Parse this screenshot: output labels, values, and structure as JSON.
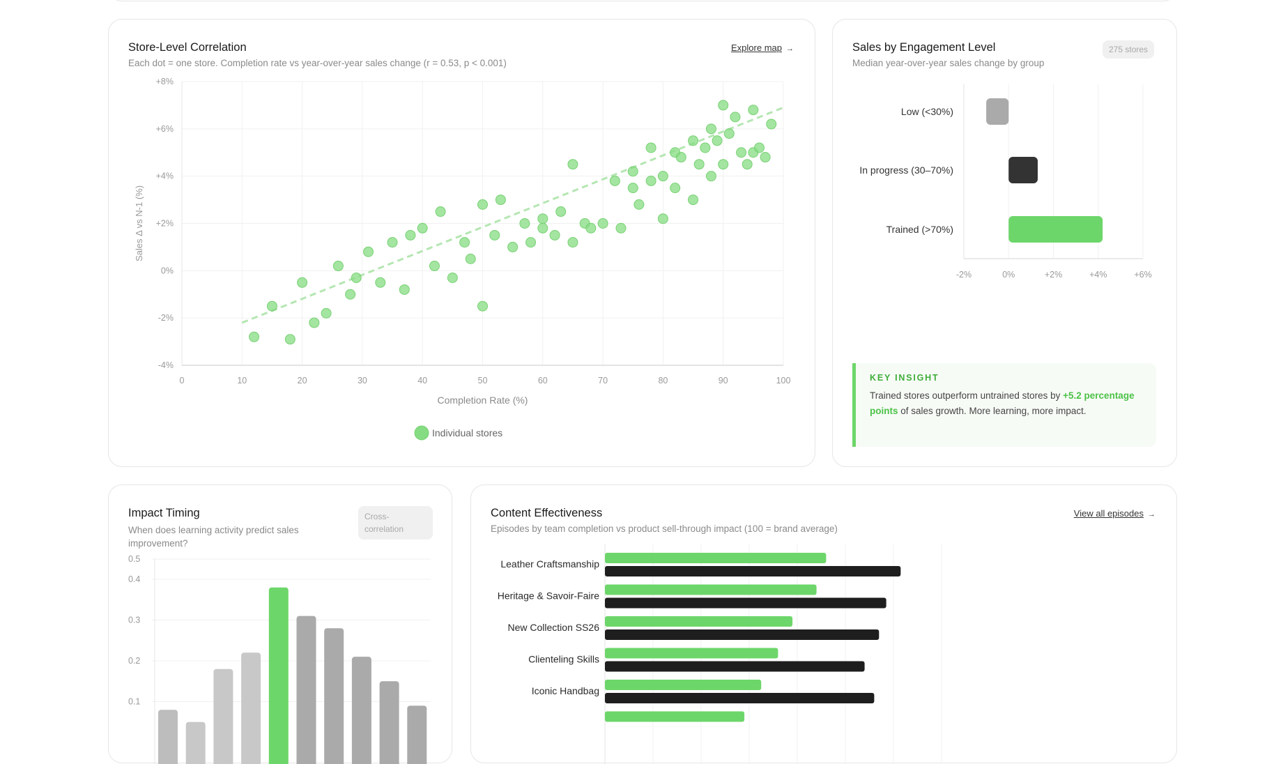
{
  "colors": {
    "green": "#6dd66a",
    "scatter": "#86dc82",
    "dark": "#1e1e1e",
    "gray_light": "#c8c8c8",
    "gray_dark": "#aaaaaa",
    "gray_low": "#aaaaaa",
    "gray_mid": "#333333"
  },
  "correlation": {
    "title": "Store-Level Correlation",
    "subtitle": "Each dot = one store. Completion rate vs year-over-year sales change (r = 0.53, p < 0.001)",
    "link_label": "Explore map",
    "link_icon": "arrow-right-icon"
  },
  "engagement": {
    "title": "Sales by Engagement Level",
    "subtitle": "Median year-over-year sales change by group",
    "badge": "275 stores",
    "insight": {
      "heading": "KEY INSIGHT",
      "text_before": "Trained stores outperform untrained stores by ",
      "highlight": "+5.2 percentage points",
      "text_after": " of sales growth. More learning, more impact."
    }
  },
  "timing": {
    "title": "Impact Timing",
    "subtitle": "When does learning activity predict sales improvement?",
    "badge": "Cross-correlation"
  },
  "content": {
    "title": "Content Effectiveness",
    "subtitle": "Episodes by team completion vs product sell-through impact (100 = brand average)",
    "link_label": "View all episodes",
    "link_icon": "arrow-right-icon"
  },
  "chart_data": [
    {
      "type": "scatter",
      "xlabel": "Completion Rate (%)",
      "ylabel": "Sales Δ vs N-1 (%)",
      "xlim": [
        0,
        100
      ],
      "ylim": [
        -4,
        8
      ],
      "xticks": [
        "0",
        "10",
        "20",
        "30",
        "40",
        "50",
        "60",
        "70",
        "80",
        "90",
        "100"
      ],
      "yticks": [
        "+8%",
        "+6%",
        "+4%",
        "+2%",
        "0%",
        "-2%",
        "-4%"
      ],
      "grid": true,
      "legend": {
        "placement": "bottom",
        "entries": [
          "Individual stores"
        ]
      },
      "trendline": {
        "style": "dashed",
        "from": [
          10,
          -2.2
        ],
        "to": [
          100,
          6.9
        ]
      },
      "points": [
        [
          12,
          -2.8
        ],
        [
          15,
          -1.5
        ],
        [
          18,
          -2.9
        ],
        [
          20,
          -0.5
        ],
        [
          22,
          -2.2
        ],
        [
          24,
          -1.8
        ],
        [
          26,
          0.2
        ],
        [
          28,
          -1.0
        ],
        [
          29,
          -0.3
        ],
        [
          31,
          0.8
        ],
        [
          33,
          -0.5
        ],
        [
          35,
          1.2
        ],
        [
          37,
          -0.8
        ],
        [
          38,
          1.5
        ],
        [
          40,
          1.8
        ],
        [
          42,
          0.2
        ],
        [
          43,
          2.5
        ],
        [
          45,
          -0.3
        ],
        [
          47,
          1.2
        ],
        [
          48,
          0.5
        ],
        [
          50,
          2.8
        ],
        [
          50,
          -1.5
        ],
        [
          52,
          1.5
        ],
        [
          53,
          3.0
        ],
        [
          55,
          1.0
        ],
        [
          57,
          2.0
        ],
        [
          58,
          1.2
        ],
        [
          60,
          2.2
        ],
        [
          60,
          1.8
        ],
        [
          62,
          1.5
        ],
        [
          63,
          2.5
        ],
        [
          65,
          1.2
        ],
        [
          65,
          4.5
        ],
        [
          67,
          2.0
        ],
        [
          68,
          1.8
        ],
        [
          70,
          2.0
        ],
        [
          72,
          3.8
        ],
        [
          73,
          1.8
        ],
        [
          75,
          4.2
        ],
        [
          75,
          3.5
        ],
        [
          76,
          2.8
        ],
        [
          78,
          5.2
        ],
        [
          78,
          3.8
        ],
        [
          80,
          4.0
        ],
        [
          80,
          2.2
        ],
        [
          82,
          5.0
        ],
        [
          82,
          3.5
        ],
        [
          83,
          4.8
        ],
        [
          85,
          5.5
        ],
        [
          85,
          3.0
        ],
        [
          86,
          4.5
        ],
        [
          87,
          5.2
        ],
        [
          88,
          6.0
        ],
        [
          88,
          4.0
        ],
        [
          89,
          5.5
        ],
        [
          90,
          7.0
        ],
        [
          90,
          4.5
        ],
        [
          91,
          5.8
        ],
        [
          92,
          6.5
        ],
        [
          93,
          5.0
        ],
        [
          94,
          4.5
        ],
        [
          95,
          6.8
        ],
        [
          95,
          5.0
        ],
        [
          96,
          5.2
        ],
        [
          97,
          4.8
        ],
        [
          98,
          6.2
        ]
      ]
    },
    {
      "type": "bar",
      "orientation": "horizontal",
      "categories": [
        "Low (<30%)",
        "In progress (30–70%)",
        "Trained (>70%)"
      ],
      "values": [
        -1.0,
        1.3,
        4.2
      ],
      "xlim": [
        -2,
        6
      ],
      "xticks": [
        "-2%",
        "0%",
        "+2%",
        "+4%",
        "+6%"
      ],
      "grid": true
    },
    {
      "type": "bar",
      "yticks": [
        "0.5",
        "0.4",
        "0.3",
        "0.2",
        "0.1"
      ],
      "ylim": [
        0,
        0.5
      ],
      "values": [
        0.08,
        0.05,
        0.18,
        0.22,
        0.38,
        0.31,
        0.28,
        0.21,
        0.15,
        0.09
      ],
      "highlight_index": 4,
      "grid": true
    },
    {
      "type": "bar",
      "orientation": "horizontal",
      "categories": [
        "Leather Craftsmanship",
        "Heritage & Savoir-Faire",
        "New Collection SS26",
        "Clienteling Skills",
        "Iconic Handbag",
        ""
      ],
      "xlim": [
        0,
        140
      ],
      "series": [
        {
          "values": [
            92,
            88,
            78,
            72,
            65,
            58
          ]
        },
        {
          "values": [
            123,
            117,
            114,
            108,
            112,
            null
          ]
        }
      ],
      "grid": true
    }
  ]
}
